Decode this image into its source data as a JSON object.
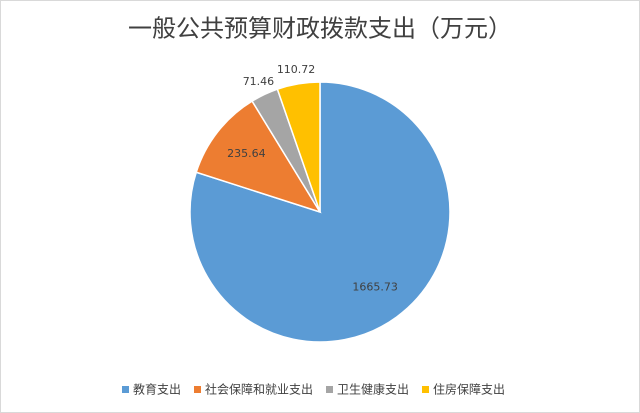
{
  "chart_data": {
    "type": "pie",
    "title": "一般公共预算财政拨款支出（万元）",
    "categories": [
      "教育支出",
      "社会保障和就业支出",
      "卫生健康支出",
      "住房保障支出"
    ],
    "values": [
      1665.73,
      235.64,
      71.46,
      110.72
    ],
    "colors": [
      "#5b9bd5",
      "#ed7d31",
      "#a5a5a5",
      "#ffc000"
    ],
    "legend": "bottom"
  }
}
